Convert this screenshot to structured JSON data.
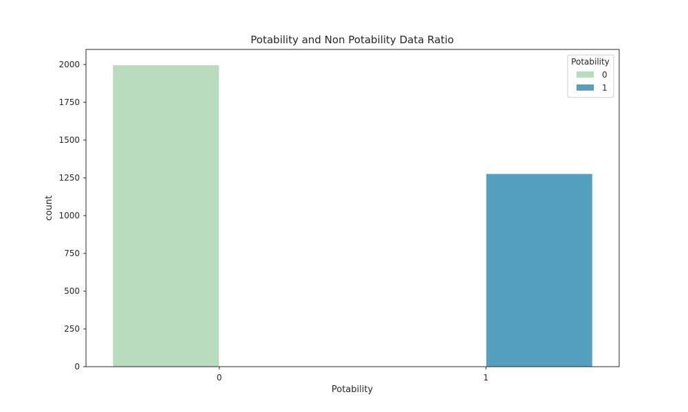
{
  "chart_data": {
    "type": "bar",
    "title": "Potability and Non Potability Data Ratio",
    "xlabel": "Potability",
    "ylabel": "count",
    "categories": [
      "0",
      "1"
    ],
    "hue_levels": [
      "0",
      "1"
    ],
    "series": [
      {
        "name": "0",
        "color": "#b9dcbe",
        "values": [
          1998,
          0
        ]
      },
      {
        "name": "1",
        "color": "#55a0bf",
        "values": [
          0,
          1278
        ]
      }
    ],
    "ylim": [
      0,
      2100
    ],
    "yticks": [
      0,
      250,
      500,
      750,
      1000,
      1250,
      1500,
      1750,
      2000
    ],
    "ytick_labels": [
      "0",
      "250",
      "500",
      "750",
      "1000",
      "1250",
      "1500",
      "1750",
      "2000"
    ],
    "grid": false,
    "legend": {
      "title": "Potability",
      "position": "top-right"
    }
  }
}
